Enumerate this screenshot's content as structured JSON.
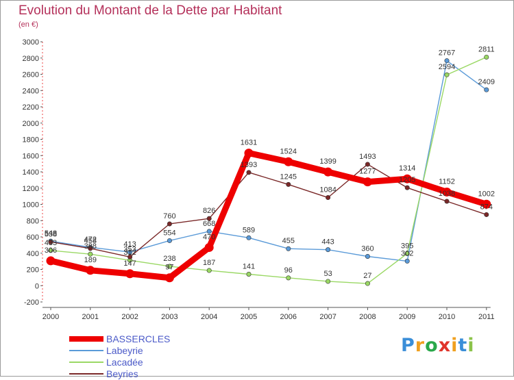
{
  "title": "Evolution du Montant de la Dette par Habitant",
  "subtitle": "(en €)",
  "logo_text": "Proxiti",
  "logo_colors": [
    "#3a8ed8",
    "#f0a020",
    "#2aa84a",
    "#e0342a",
    "#f0a020",
    "#3a8ed8",
    "#8bc34a"
  ],
  "chart_data": {
    "type": "line",
    "x": [
      "2000",
      "2001",
      "2002",
      "2003",
      "2004",
      "2005",
      "2006",
      "2007",
      "2008",
      "2009",
      "2010",
      "2011"
    ],
    "ylim": [
      -200,
      3000
    ],
    "yticks": [
      -200,
      0,
      200,
      400,
      600,
      800,
      1000,
      1200,
      1400,
      1600,
      1800,
      2000,
      2200,
      2400,
      2600,
      2800,
      3000
    ],
    "grid": false,
    "legend_position": "bottom-left",
    "series": [
      {
        "name": "BASSERCLES",
        "color": "#ee0000",
        "width": 9,
        "radius": 6.5,
        "values": [
          306,
          189,
          147,
          97,
          470,
          1631,
          1524,
          1399,
          1277,
          1314,
          1152,
          1002
        ]
      },
      {
        "name": "Labeyrie",
        "color": "#5a9ad8",
        "width": 1.4,
        "radius": 3.2,
        "values": [
          548,
          472,
          413,
          554,
          668,
          589,
          455,
          443,
          360,
          302,
          2767,
          2409
        ]
      },
      {
        "name": "Lacadée",
        "color": "#9ad864",
        "width": 1.4,
        "radius": 3.2,
        "values": [
          433,
          388,
          312,
          238,
          187,
          141,
          96,
          53,
          27,
          395,
          2594,
          2811
        ]
      },
      {
        "name": "Beyries",
        "color": "#7a2828",
        "width": 1.4,
        "radius": 3.2,
        "values": [
          538,
          458,
          353,
          760,
          826,
          1393,
          1245,
          1084,
          1493,
          1205,
          1038,
          874
        ]
      }
    ]
  }
}
